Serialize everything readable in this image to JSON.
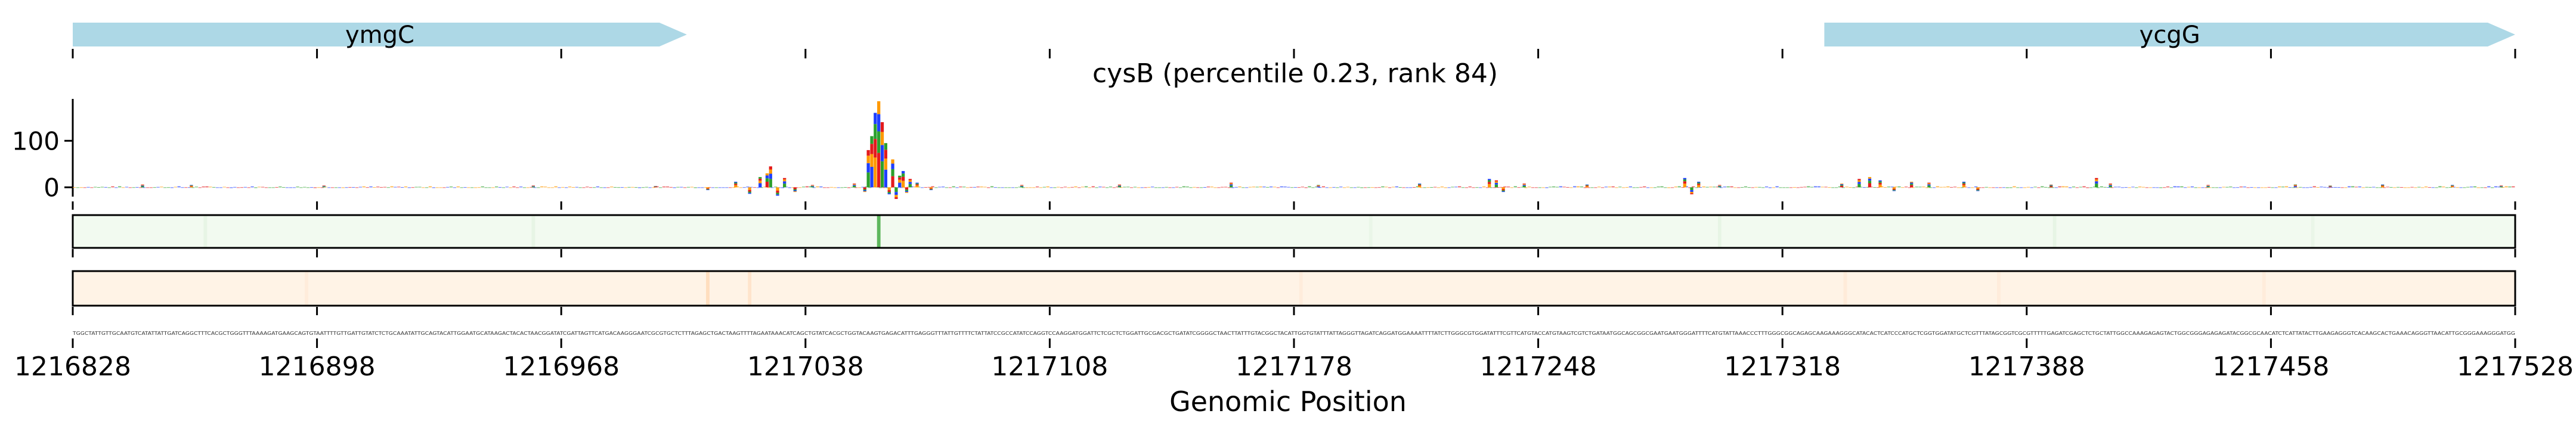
{
  "chart_data": [
    {
      "type": "gene-track",
      "genes": [
        {
          "name": "ymgC",
          "start": 1216828,
          "end": 1217004,
          "strand": "+"
        },
        {
          "name": "ycgG",
          "start": 1217330,
          "end": 1217528,
          "strand": "+"
        }
      ]
    },
    {
      "type": "sequence-logo",
      "title": "cysB (percentile 0.23, rank 84)",
      "ylim": [
        -20,
        190
      ],
      "yticks": [
        0,
        100
      ],
      "peaks": [
        {
          "position": 1216848,
          "height": 6
        },
        {
          "position": 1216862,
          "height": 5
        },
        {
          "position": 1216900,
          "height": 4
        },
        {
          "position": 1216960,
          "height": 4
        },
        {
          "position": 1216995,
          "height": 3
        },
        {
          "position": 1217010,
          "height": -6
        },
        {
          "position": 1217018,
          "height": 12
        },
        {
          "position": 1217022,
          "height": -14
        },
        {
          "position": 1217025,
          "height": 22
        },
        {
          "position": 1217027,
          "height": 30
        },
        {
          "position": 1217028,
          "height": 45
        },
        {
          "position": 1217030,
          "height": -18
        },
        {
          "position": 1217032,
          "height": 20
        },
        {
          "position": 1217035,
          "height": -10
        },
        {
          "position": 1217040,
          "height": 5
        },
        {
          "position": 1217052,
          "height": 8
        },
        {
          "position": 1217055,
          "height": -10
        },
        {
          "position": 1217056,
          "height": 80
        },
        {
          "position": 1217057,
          "height": 110
        },
        {
          "position": 1217058,
          "height": 160
        },
        {
          "position": 1217059,
          "height": 185
        },
        {
          "position": 1217060,
          "height": 140
        },
        {
          "position": 1217061,
          "height": 95
        },
        {
          "position": 1217062,
          "height": -15
        },
        {
          "position": 1217063,
          "height": 60
        },
        {
          "position": 1217064,
          "height": -25
        },
        {
          "position": 1217065,
          "height": 25
        },
        {
          "position": 1217066,
          "height": 35
        },
        {
          "position": 1217067,
          "height": -12
        },
        {
          "position": 1217068,
          "height": 18
        },
        {
          "position": 1217070,
          "height": 10
        },
        {
          "position": 1217074,
          "height": -6
        },
        {
          "position": 1217100,
          "height": 5
        },
        {
          "position": 1217128,
          "height": 6
        },
        {
          "position": 1217160,
          "height": 10
        },
        {
          "position": 1217185,
          "height": 5
        },
        {
          "position": 1217214,
          "height": 8
        },
        {
          "position": 1217234,
          "height": 18
        },
        {
          "position": 1217236,
          "height": 15
        },
        {
          "position": 1217238,
          "height": -10
        },
        {
          "position": 1217244,
          "height": 8
        },
        {
          "position": 1217262,
          "height": 6
        },
        {
          "position": 1217290,
          "height": 20
        },
        {
          "position": 1217292,
          "height": -15
        },
        {
          "position": 1217294,
          "height": 12
        },
        {
          "position": 1217300,
          "height": 5
        },
        {
          "position": 1217335,
          "height": 8
        },
        {
          "position": 1217340,
          "height": 18
        },
        {
          "position": 1217343,
          "height": 22
        },
        {
          "position": 1217346,
          "height": 15
        },
        {
          "position": 1217350,
          "height": -8
        },
        {
          "position": 1217355,
          "height": 12
        },
        {
          "position": 1217360,
          "height": 10
        },
        {
          "position": 1217370,
          "height": 12
        },
        {
          "position": 1217374,
          "height": -8
        },
        {
          "position": 1217395,
          "height": 6
        },
        {
          "position": 1217408,
          "height": 20
        },
        {
          "position": 1217412,
          "height": 8
        },
        {
          "position": 1217440,
          "height": 5
        },
        {
          "position": 1217465,
          "height": 6
        },
        {
          "position": 1217475,
          "height": 4
        },
        {
          "position": 1217490,
          "height": 6
        },
        {
          "position": 1217510,
          "height": 5
        },
        {
          "position": 1217524,
          "height": 4
        }
      ]
    },
    {
      "type": "heatmap",
      "color": "#2ca02c",
      "peaks": [
        {
          "position": 1217059,
          "intensity": 0.75
        },
        {
          "position": 1216866,
          "intensity": 0.05
        },
        {
          "position": 1216960,
          "intensity": 0.05
        },
        {
          "position": 1217200,
          "intensity": 0.04
        },
        {
          "position": 1217300,
          "intensity": 0.05
        },
        {
          "position": 1217396,
          "intensity": 0.05
        },
        {
          "position": 1217470,
          "intensity": 0.04
        }
      ]
    },
    {
      "type": "heatmap",
      "color": "#ff7f0e",
      "peaks": [
        {
          "position": 1217010,
          "intensity": 0.18
        },
        {
          "position": 1217022,
          "intensity": 0.12
        },
        {
          "position": 1216895,
          "intensity": 0.05
        },
        {
          "position": 1217180,
          "intensity": 0.05
        },
        {
          "position": 1217336,
          "intensity": 0.06
        },
        {
          "position": 1217380,
          "intensity": 0.05
        },
        {
          "position": 1217456,
          "intensity": 0.05
        }
      ]
    }
  ],
  "axis": {
    "xlabel": "Genomic Position",
    "xlim": [
      1216828,
      1217528
    ],
    "xticks": [
      1216828,
      1216898,
      1216968,
      1217038,
      1217108,
      1217178,
      1217248,
      1217318,
      1217388,
      1217458,
      1217528
    ],
    "sequence": "TGGCTATTGTTGCAATGTCATATTATTGATCAGGCTTTCACGCTGGGTTTAAAAGATGAAGCAGTGTAATTTTGTTGATTGTATCTCTGCAAATATTGCAGTACATTGGAATGCATAAGACTACACTAACGGATATCGATTAGTTCATGACAAGGGAATCGCGTGCTCTTTAGAGCTGACTAAGTTTTAGAATAAACATCAGCTGTATCACGCTGGTACAAGTGAGACATTTGAGGGTTTATTGTTTTCTATTATCCGCCATATCCAGGTCCAAGGATGGATTCTCGCTCTGGATTGCGACGCTGATATCGGGGCTAACTTATTTGTACGGCTACATTGGTGTATTTATTAGGGTTAGATCAGGATGGAAAATTTTATCTTGGGCGTGGATATTTCGTTCATGTACCATGTAAGTCGTCTGATAATGGCAGCGGCGAATGAATGGGATTTTCATGTATTAAACCCTTTGGGCGGCAGAGCAAGAAAGGGCATACACTCATCCCATGCTCGGTGGATATGCTCGTTTATAGCGGTCGCGTTTTTGAGATCGAGCTCTGCTATTGGCCAAAGAGAGTACTGGCGGGAGAGAGATACGGCGCAACATCTCATTATACTTGAAGAGGGTCACAAGCACTGAAACAGGGTTAACATTGCGGGAAAGGGATGG"
  }
}
